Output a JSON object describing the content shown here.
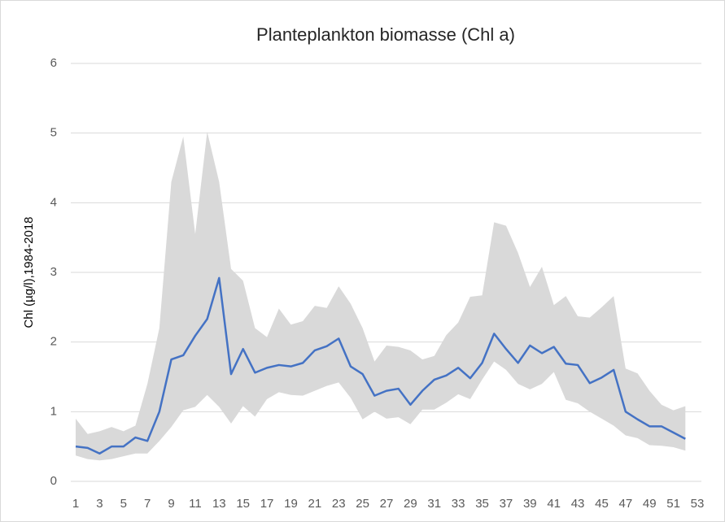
{
  "chart_data": {
    "type": "line",
    "title": "Planteplankton biomasse (Chl a)",
    "y_label": "Chl (µg/l),1984-2018",
    "x": [
      1,
      2,
      3,
      4,
      5,
      6,
      7,
      8,
      9,
      10,
      11,
      12,
      13,
      14,
      15,
      16,
      17,
      18,
      19,
      20,
      21,
      22,
      23,
      24,
      25,
      26,
      27,
      28,
      29,
      30,
      31,
      32,
      33,
      34,
      35,
      36,
      37,
      38,
      39,
      40,
      41,
      42,
      43,
      44,
      45,
      46,
      47,
      48,
      49,
      50,
      51,
      52
    ],
    "xlim": [
      1,
      53
    ],
    "xticks": [
      1,
      3,
      5,
      7,
      9,
      11,
      13,
      15,
      17,
      19,
      21,
      23,
      25,
      27,
      29,
      31,
      33,
      35,
      37,
      39,
      41,
      43,
      45,
      47,
      49,
      51,
      53
    ],
    "ylim": [
      0,
      6
    ],
    "yticks": [
      0,
      1,
      2,
      3,
      4,
      5,
      6
    ],
    "grid": true,
    "series": [
      {
        "color": "#4472c4",
        "values": [
          0.5,
          0.48,
          0.4,
          0.5,
          0.5,
          0.63,
          0.58,
          1.0,
          1.75,
          1.81,
          2.09,
          2.33,
          2.92,
          1.54,
          1.9,
          1.56,
          1.63,
          1.67,
          1.65,
          1.7,
          1.88,
          1.94,
          2.05,
          1.65,
          1.54,
          1.23,
          1.3,
          1.33,
          1.1,
          1.3,
          1.46,
          1.52,
          1.63,
          1.48,
          1.7,
          2.12,
          1.9,
          1.7,
          1.95,
          1.84,
          1.93,
          1.69,
          1.67,
          1.41,
          1.49,
          1.6,
          1.0,
          0.89,
          0.79,
          0.79,
          0.7,
          0.61
        ]
      }
    ],
    "band": {
      "color": "#d9d9d9",
      "upper": [
        0.9,
        0.68,
        0.72,
        0.78,
        0.72,
        0.8,
        1.4,
        2.2,
        4.3,
        4.95,
        3.55,
        5.02,
        4.3,
        3.05,
        2.88,
        2.2,
        2.07,
        2.48,
        2.25,
        2.3,
        2.52,
        2.49,
        2.8,
        2.55,
        2.2,
        1.72,
        1.95,
        1.93,
        1.88,
        1.75,
        1.8,
        2.1,
        2.28,
        2.65,
        2.67,
        3.72,
        3.67,
        3.28,
        2.79,
        3.08,
        2.53,
        2.66,
        2.37,
        2.35,
        2.5,
        2.66,
        1.62,
        1.55,
        1.3,
        1.1,
        1.02,
        1.08
      ],
      "lower": [
        0.37,
        0.32,
        0.3,
        0.32,
        0.36,
        0.4,
        0.4,
        0.58,
        0.78,
        1.02,
        1.07,
        1.24,
        1.07,
        0.83,
        1.08,
        0.93,
        1.18,
        1.28,
        1.24,
        1.23,
        1.3,
        1.37,
        1.42,
        1.2,
        0.89,
        1.0,
        0.9,
        0.92,
        0.82,
        1.03,
        1.03,
        1.13,
        1.25,
        1.18,
        1.46,
        1.72,
        1.6,
        1.4,
        1.32,
        1.4,
        1.57,
        1.17,
        1.12,
        1.0,
        0.9,
        0.8,
        0.66,
        0.62,
        0.52,
        0.51,
        0.49,
        0.44
      ]
    }
  }
}
